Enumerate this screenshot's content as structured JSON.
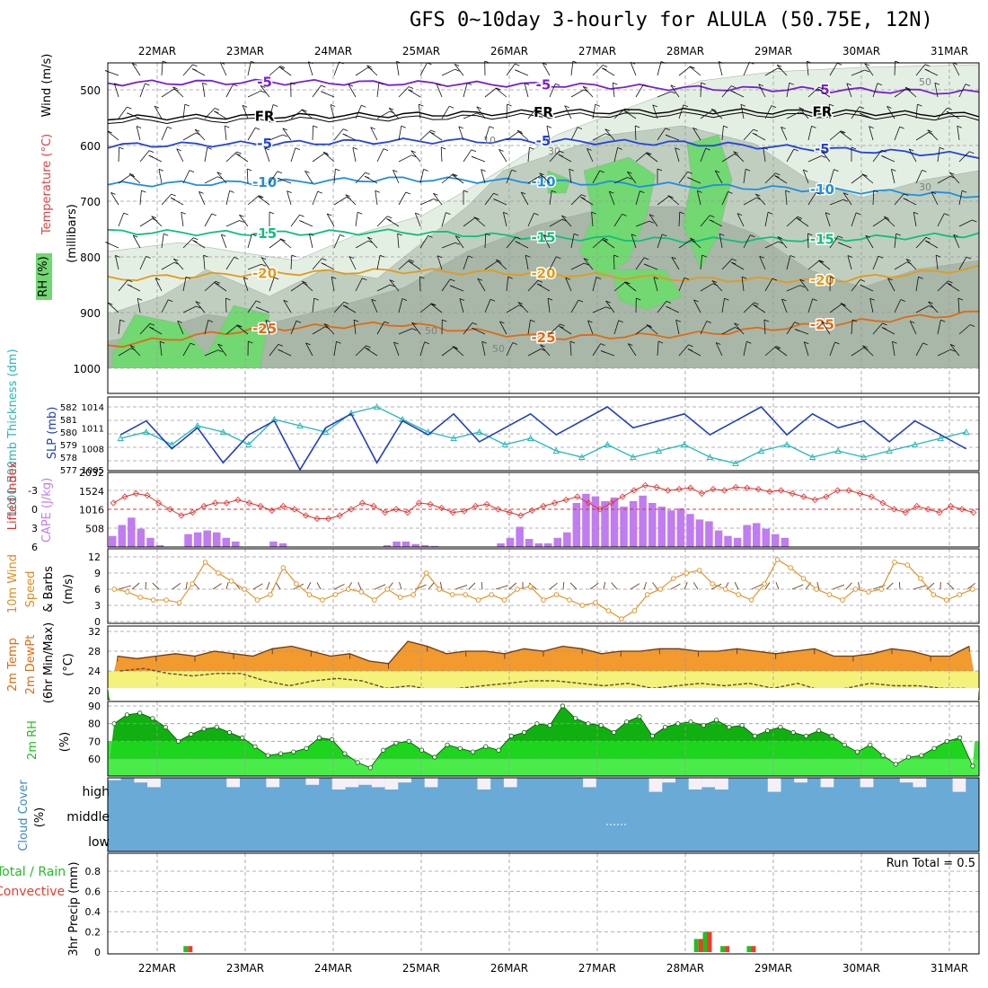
{
  "title": "GFS 0~10day 3-hourly for ALULA (50.75E, 12N)",
  "dates": [
    "22MAR",
    "23MAR",
    "24MAR",
    "25MAR",
    "26MAR",
    "27MAR",
    "28MAR",
    "29MAR",
    "30MAR",
    "31MAR"
  ],
  "colors": {
    "rh_light": "#e4efe4",
    "rh_mid": "#c0cec0",
    "rh_dark": "#a8b7a8",
    "rh_green": "#72d872",
    "slp": "#1f3fbf",
    "thickness": "#27b8b8",
    "lifted": "#e0302c",
    "cape": "#c07cf0",
    "wind_speed": "#e38c1a",
    "barbs": "#6b4226",
    "temp_fill": "#f29a2e",
    "temp_dark": "#e06a10",
    "dew_fill_yellow": "#f4f27a",
    "dew_fill_green": "#3fdc3f",
    "rh2m_dark": "#10b010",
    "rh2m_mid": "#1fdc1f",
    "rh2m_light": "#50ee50",
    "cloud": "#6aaad6",
    "cloud_bg": "#f5f0f8",
    "precip_total": "#1fbf1f",
    "precip_conv": "#f03a2a"
  },
  "chart_data": [
    {
      "type": "heatmap",
      "panel": "upper_air",
      "ylabels": [
        "Wind (m/s)",
        "Temperature (°C)",
        "(millibars)",
        "RH (%)"
      ],
      "yticks": [
        500,
        600,
        700,
        800,
        900,
        1000
      ],
      "isotherms": [
        {
          "label": "-5",
          "values": [
            488,
            486,
            488,
            491,
            497,
            500,
            505
          ]
        },
        {
          "label": "FR",
          "values": [
            550,
            548,
            545,
            540,
            538,
            540,
            545
          ]
        },
        {
          "label": "-5",
          "values": [
            600,
            597,
            592,
            592,
            596,
            607,
            618
          ]
        },
        {
          "label": "-10",
          "values": [
            670,
            667,
            660,
            665,
            672,
            680,
            690
          ]
        },
        {
          "label": "-15",
          "values": [
            755,
            758,
            755,
            765,
            770,
            768,
            760
          ]
        },
        {
          "label": "-20",
          "values": [
            840,
            830,
            825,
            830,
            840,
            842,
            820
          ]
        },
        {
          "label": "-25",
          "values": [
            960,
            930,
            920,
            945,
            940,
            920,
            900
          ]
        }
      ],
      "rh_labels": [
        "10",
        "30",
        "50"
      ]
    },
    {
      "type": "line",
      "panel": "slp_thickness",
      "ylabel_left": "1000-500mb Thickness (dm)",
      "ylabel_right": "SLP (mb)",
      "yticks_left": [
        577,
        578,
        579,
        580,
        581,
        582
      ],
      "yticks_right": [
        1005,
        1008,
        1011,
        1014
      ],
      "series": [
        {
          "name": "SLP (mb)",
          "values": [
            1010,
            1012,
            1008,
            1011,
            1006,
            1010,
            1012,
            1005,
            1011,
            1013,
            1006,
            1012,
            1010,
            1013,
            1009,
            1011,
            1013,
            1010,
            1012,
            1014,
            1011,
            1012,
            1013,
            1010,
            1012,
            1014,
            1010,
            1013,
            1011,
            1012,
            1009,
            1012,
            1010,
            1008
          ]
        },
        {
          "name": "Thickness (dm)",
          "values": [
            579.5,
            580,
            579,
            580.5,
            580,
            579,
            581,
            580.5,
            580,
            581.5,
            582,
            581,
            580,
            579.5,
            580,
            579,
            579.5,
            578.5,
            578,
            579,
            578,
            578.5,
            579,
            578,
            577.5,
            578.5,
            579,
            578,
            578.5,
            578,
            578.5,
            579,
            579.5,
            580
          ]
        }
      ]
    },
    {
      "type": "bar",
      "panel": "li_cape",
      "ylabel_left": "Lifted Index",
      "ylabel_right": "CAPE (J/kg)",
      "yticks_left": [
        "-3",
        "0",
        "3",
        "6"
      ],
      "yticks_right": [
        508,
        1016,
        1524,
        2032
      ],
      "series": [
        {
          "name": "CAPE (J/kg)",
          "values": [
            300,
            600,
            800,
            500,
            250,
            50,
            0,
            0,
            350,
            400,
            450,
            400,
            250,
            150,
            0,
            0,
            0,
            150,
            100,
            0,
            0,
            0,
            0,
            0,
            0,
            0,
            0,
            0,
            0,
            50,
            150,
            150,
            80,
            50,
            30,
            0,
            0,
            0,
            0,
            0,
            0,
            100,
            250,
            550,
            220,
            100,
            100,
            250,
            400,
            1200,
            1450,
            1380,
            1250,
            1350,
            1100,
            1250,
            1400,
            1200,
            1100,
            1000,
            1050,
            900,
            750,
            700,
            450,
            300,
            250,
            600,
            650,
            500,
            350,
            250,
            0,
            0,
            0,
            0,
            0,
            0,
            0,
            0,
            0,
            0,
            0,
            0,
            0,
            0,
            0,
            0,
            0,
            0,
            0,
            0
          ]
        },
        {
          "name": "Lifted Index",
          "values": [
            -1,
            -2,
            -2.5,
            -2.2,
            -1,
            0,
            1,
            0.5,
            -0.5,
            -1,
            -1,
            -1.5,
            -1,
            -0.5,
            0.2,
            -0.5,
            0,
            1,
            1.5,
            1.5,
            1,
            0,
            -1,
            -0.5,
            0.5,
            0,
            0.5,
            -1,
            -0.8,
            -0.2,
            0.5,
            0.3,
            -0.5,
            -0.8,
            0,
            0.5,
            1,
            0.2,
            -0.5,
            -1,
            -1.5,
            -2,
            -1,
            0,
            -1,
            -2,
            -3,
            -3.8,
            -3.5,
            -3,
            -3.2,
            -3.4,
            -2.5,
            -3.2,
            -3,
            -3.5,
            -3.4,
            -3.2,
            -2.8,
            -3,
            -2.5,
            -2,
            -1.5,
            -2,
            -3,
            -3,
            -2.5,
            -2,
            -1,
            0,
            0.5,
            -0.5,
            0,
            0.5,
            -0.5,
            0,
            0.5
          ]
        }
      ]
    },
    {
      "type": "line",
      "panel": "wind10m",
      "ylabel": "10m Wind Speed & Barbs (m/s)",
      "yticks": [
        0,
        3,
        6,
        9,
        12
      ],
      "series": [
        {
          "name": "10m Wind Speed",
          "values": [
            6,
            5.5,
            4.5,
            4,
            4,
            3.5,
            7,
            11,
            9,
            7.5,
            6,
            4,
            5,
            10,
            7,
            5,
            4,
            5,
            6,
            5.5,
            4,
            6,
            4.5,
            5,
            9,
            6,
            5,
            5,
            4,
            5,
            4,
            6,
            6.5,
            4,
            5,
            4,
            3,
            3.5,
            2,
            0.5,
            2,
            5,
            6,
            8,
            9,
            9.5,
            7,
            6,
            5,
            4,
            7,
            11.5,
            10,
            8,
            6,
            5,
            4,
            6,
            5.5,
            6,
            11,
            10.5,
            8,
            5,
            4,
            5,
            6
          ]
        }
      ]
    },
    {
      "type": "area",
      "panel": "temp2m",
      "ylabel": "2m Temp 2m DewPt (6hr Min/Max) (°C)",
      "yticks": [
        20,
        24,
        28,
        32
      ],
      "series": [
        {
          "name": "2m Temp",
          "values": [
            27,
            26.5,
            27,
            27.5,
            27,
            28,
            27.5,
            27,
            28.5,
            29,
            28,
            27,
            27.5,
            26,
            25.5,
            30,
            29,
            27.5,
            28,
            28,
            27.5,
            28.5,
            28,
            29,
            28.5,
            27.5,
            28,
            28,
            28.5,
            28.5,
            28,
            28,
            28.5,
            28,
            27.5,
            28,
            28.5,
            27,
            27,
            27.5,
            28.5,
            28,
            27,
            27,
            29
          ]
        },
        {
          "name": "2m DewPt",
          "values": [
            24,
            24.5,
            23.5,
            23,
            23.5,
            23.5,
            22,
            21,
            22,
            22.5,
            22,
            20.5,
            21,
            20,
            20.5,
            21,
            21.5,
            22,
            22,
            21.5,
            21,
            21.5,
            20.5,
            21,
            21.5,
            21,
            21.5,
            20.5,
            21.5,
            20,
            20.5,
            21.5,
            21,
            21,
            20.5,
            20.5
          ]
        }
      ]
    },
    {
      "type": "area",
      "panel": "rh2m",
      "ylabel": "2m RH (%)",
      "yticks": [
        60,
        70,
        80,
        90
      ],
      "series": [
        {
          "name": "2m RH",
          "values": [
            80,
            85,
            86,
            83,
            78,
            70,
            74,
            77,
            78,
            75,
            72,
            67,
            62,
            63,
            64,
            66,
            72,
            71,
            63,
            58,
            55,
            65,
            69,
            70,
            65,
            61,
            68,
            66,
            64,
            67,
            65,
            73,
            75,
            80,
            79,
            90,
            83,
            80,
            79,
            75,
            81,
            84,
            73,
            78,
            80,
            81,
            79,
            82,
            78,
            79,
            73,
            76,
            78,
            75,
            73,
            76,
            73,
            68,
            64,
            68,
            62,
            57,
            61,
            62,
            66,
            70,
            72,
            56
          ]
        }
      ]
    },
    {
      "type": "area",
      "panel": "cloud_cover",
      "ylabel": "Cloud Cover (%)",
      "yticks": [
        "high",
        "middle",
        "low"
      ],
      "series": [
        {
          "name": "high",
          "values": [
            90,
            100,
            80,
            60,
            100,
            100,
            100,
            100,
            100,
            60,
            100,
            100,
            60,
            100,
            100,
            70,
            100,
            50,
            60,
            70,
            60,
            50,
            80,
            100,
            60,
            100,
            100,
            100,
            50,
            100,
            60,
            100,
            100,
            100,
            100,
            100,
            60,
            100,
            100,
            100,
            100,
            40,
            80,
            100,
            50,
            60,
            50,
            100,
            100,
            100,
            40,
            100,
            80,
            100,
            60,
            100,
            100,
            60,
            100,
            100,
            80,
            60,
            100,
            100,
            40,
            100
          ]
        },
        {
          "name": "middle",
          "values": [
            100,
            100,
            100,
            100,
            100,
            100,
            100,
            100,
            100,
            100,
            100,
            100,
            100,
            100,
            100,
            100,
            100,
            100,
            100,
            100,
            100,
            100,
            100,
            100,
            100,
            100,
            100,
            100,
            100,
            100,
            100,
            100,
            100,
            100,
            100,
            100,
            100,
            100,
            100,
            100
          ]
        },
        {
          "name": "low",
          "values": [
            100,
            100,
            100,
            100,
            100,
            100,
            100,
            100,
            100,
            100,
            100,
            100,
            100,
            100,
            100,
            100,
            100,
            100,
            100,
            100,
            100,
            100,
            100,
            100,
            100,
            100,
            100,
            100,
            100,
            100,
            100,
            100,
            100,
            100,
            100,
            100,
            100,
            100,
            100,
            100
          ]
        }
      ]
    },
    {
      "type": "bar",
      "panel": "precip",
      "ylabel_left": "Total / Rain Convective",
      "ylabel": "3hr Precip (mm)",
      "yticks": [
        0,
        0.2,
        0.4,
        0.6,
        0.8
      ],
      "annotation": "Run Total = 0.5",
      "series": [
        {
          "name": "Total / Rain",
          "points": [
            [
              0.35,
              0.06
            ],
            [
              6.15,
              0.13
            ],
            [
              6.25,
              0.2
            ],
            [
              6.45,
              0.06
            ],
            [
              6.75,
              0.06
            ]
          ]
        },
        {
          "name": "Convective",
          "points": [
            [
              0.35,
              0.06
            ],
            [
              6.15,
              0.13
            ],
            [
              6.25,
              0.2
            ],
            [
              6.45,
              0.06
            ],
            [
              6.75,
              0.06
            ]
          ]
        }
      ]
    }
  ]
}
